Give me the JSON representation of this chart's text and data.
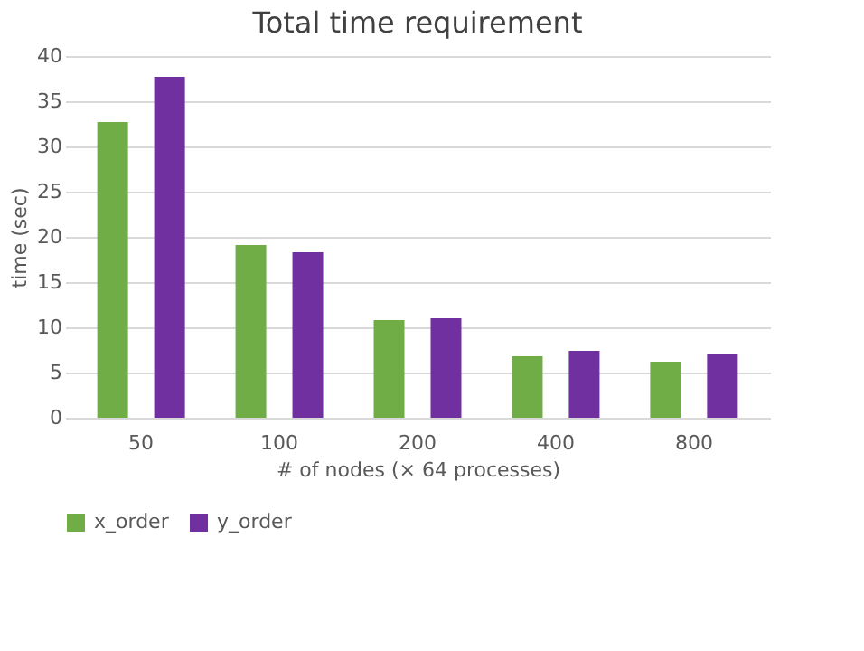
{
  "chart_data": {
    "type": "bar",
    "title": "Total time requirement",
    "xlabel": "# of nodes (× 64 processes)",
    "ylabel": "time (sec)",
    "categories": [
      "50",
      "100",
      "200",
      "400",
      "800"
    ],
    "series": [
      {
        "name": "x_order",
        "color": "#70ad47",
        "values": [
          32.7,
          19.1,
          10.8,
          6.8,
          6.2
        ]
      },
      {
        "name": "y_order",
        "color": "#7030a0",
        "values": [
          37.7,
          18.3,
          11.0,
          7.4,
          7.0
        ]
      }
    ],
    "ylim": [
      0,
      40
    ],
    "yticks": [
      0,
      5,
      10,
      15,
      20,
      25,
      30,
      35,
      40
    ],
    "grid": "y",
    "legend": "bottom"
  }
}
